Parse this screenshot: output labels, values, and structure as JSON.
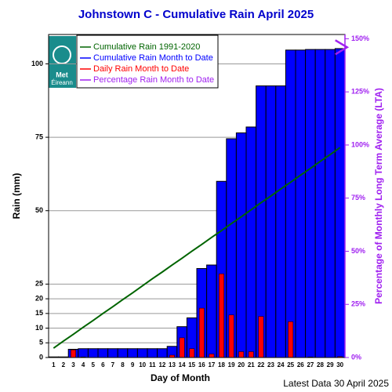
{
  "chart_data": {
    "type": "bar",
    "title": "Johnstown C - Cumulative Rain April   2025",
    "x_label": "Day of Month",
    "y_label": "Rain (mm)",
    "y2_label": "Percentage  of Monthly Long Term Average (LTA)",
    "footer": "Latest Data 30 April 2025",
    "logo": {
      "line1": "Met",
      "line2": "Éireann"
    },
    "categories": [
      "1",
      "2",
      "3",
      "4",
      "5",
      "6",
      "7",
      "8",
      "9",
      "10",
      "11",
      "12",
      "13",
      "14",
      "15",
      "16",
      "17",
      "18",
      "19",
      "20",
      "21",
      "22",
      "23",
      "24",
      "25",
      "26",
      "27",
      "28",
      "29",
      "30"
    ],
    "series": [
      {
        "name": "Cumulative Rain 1991-2020",
        "type": "line",
        "color": "#006400",
        "values": [
          3.2,
          5.6,
          7.9,
          10.3,
          12.6,
          15.0,
          17.3,
          19.7,
          22.0,
          24.4,
          26.8,
          29.1,
          31.5,
          33.8,
          36.2,
          38.5,
          40.9,
          43.2,
          45.6,
          47.9,
          50.3,
          52.7,
          55.0,
          57.4,
          59.7,
          62.1,
          64.4,
          66.8,
          69.1,
          71.5
        ]
      },
      {
        "name": "Cumulative Rain Month to Date",
        "type": "bar",
        "color": "#0000ff",
        "values": [
          0.2,
          0.2,
          2.8,
          3.0,
          3.0,
          3.0,
          3.0,
          3.0,
          3.0,
          3.0,
          3.0,
          3.0,
          3.8,
          10.5,
          13.5,
          30.3,
          31.5,
          60.0,
          74.5,
          76.5,
          78.5,
          92.5,
          92.5,
          92.5,
          104.7,
          104.7,
          104.9,
          104.9,
          104.9,
          105.2
        ]
      },
      {
        "name": "Daily Rain Month to Date",
        "type": "bar",
        "color": "#ff0000",
        "values": [
          0.2,
          0,
          2.6,
          0.2,
          0,
          0,
          0,
          0,
          0,
          0,
          0,
          0,
          0.8,
          6.7,
          3,
          16.8,
          1.2,
          28.5,
          14.5,
          2,
          2,
          14,
          0,
          0,
          12.2,
          0,
          0.2,
          0,
          0,
          0.3
        ]
      },
      {
        "name": "Percentage Rain Month to Date",
        "type": "marker",
        "color": "#a020f0",
        "axis": "y2",
        "values": [
          null,
          null,
          null,
          null,
          null,
          null,
          null,
          null,
          null,
          null,
          null,
          null,
          null,
          null,
          null,
          null,
          null,
          null,
          null,
          null,
          null,
          null,
          null,
          null,
          null,
          null,
          null,
          null,
          null,
          146
        ]
      }
    ],
    "ylim": [
      0,
      110
    ],
    "yticks": [
      0,
      5,
      10,
      15,
      20,
      25,
      50,
      75,
      100
    ],
    "y2lim": [
      0,
      152
    ],
    "y2ticks": [
      {
        "value": 0,
        "label": "0%"
      },
      {
        "value": 25,
        "label": "25%"
      },
      {
        "value": 50,
        "label": "50%"
      },
      {
        "value": 75,
        "label": "75%"
      },
      {
        "value": 100,
        "label": "100%"
      },
      {
        "value": 125,
        "label": "125%"
      },
      {
        "value": 150,
        "label": "150%"
      }
    ],
    "grid": true
  }
}
